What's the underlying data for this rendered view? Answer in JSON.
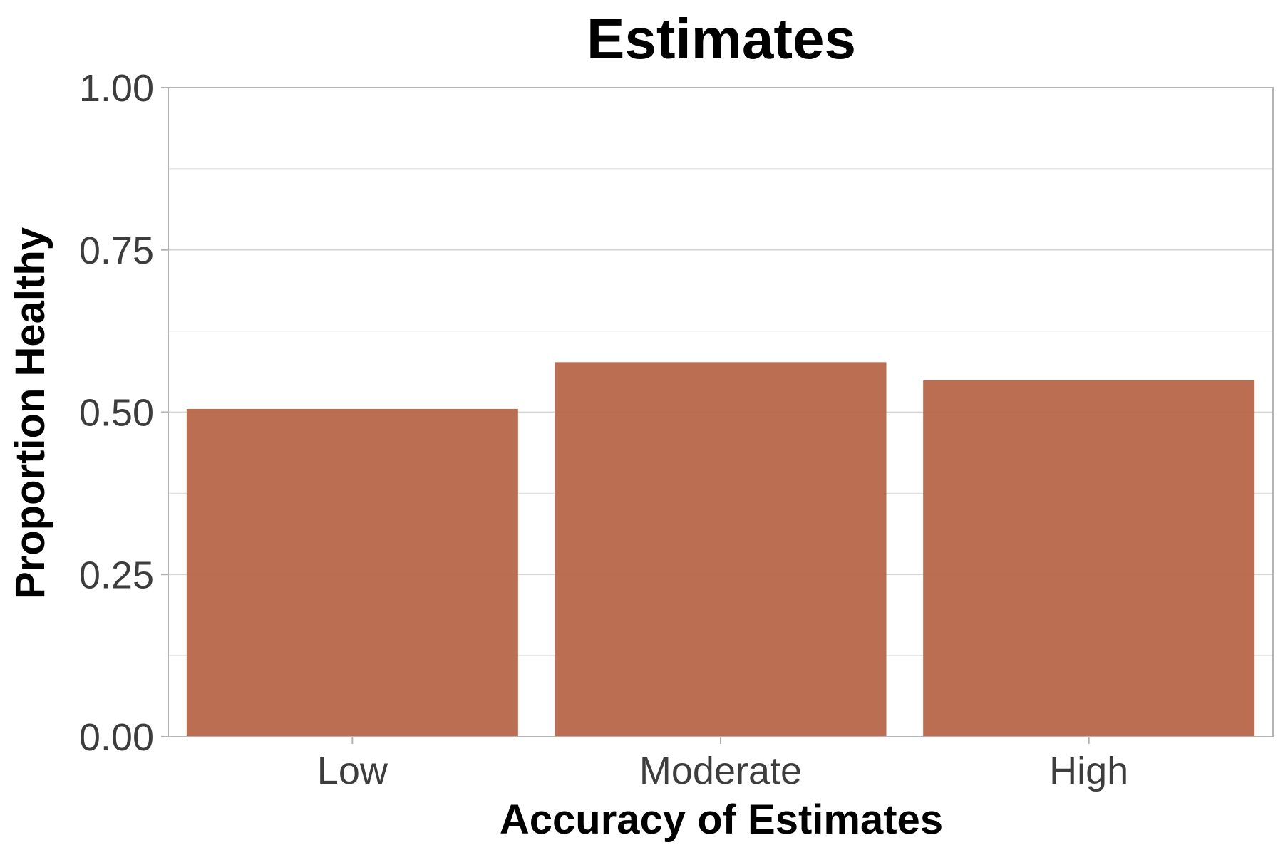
{
  "chart_data": {
    "type": "bar",
    "title": "Estimates",
    "xlabel": "Accuracy of Estimates",
    "ylabel": "Proportion Healthy",
    "categories": [
      "Low",
      "Moderate",
      "High"
    ],
    "values": [
      0.505,
      0.577,
      0.549
    ],
    "ylim": [
      0,
      1
    ],
    "yticks": [
      "0.00",
      "0.25",
      "0.50",
      "0.75",
      "1.00"
    ],
    "grid": true,
    "legend": "none",
    "colors": {
      "bar": "#b9694b",
      "grid": "#e0e0e0",
      "frame": "#b3b3b3",
      "tick_text": "#3d3d3d"
    }
  }
}
